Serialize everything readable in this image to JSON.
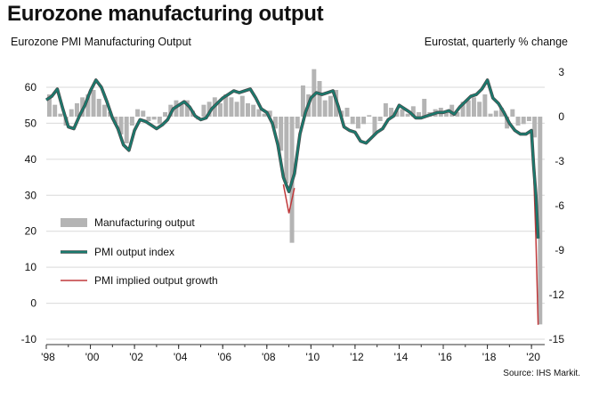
{
  "title": "Eurozone manufacturing output",
  "left_subtitle": "Eurozone PMI Manufacturing Output",
  "right_subtitle": "Eurostat, quarterly % change",
  "source": "Source: IHS Markit.",
  "chart_data": {
    "type": "line",
    "x_ticks": [
      "'98",
      "'00",
      "'02",
      "'04",
      "'06",
      "'08",
      "'10",
      "'12",
      "'14",
      "'16",
      "'18",
      "'20"
    ],
    "left_axis": {
      "ticks": [
        60,
        50,
        40,
        30,
        20,
        10,
        0,
        -10
      ],
      "range": [
        -10,
        65
      ]
    },
    "right_axis": {
      "ticks": [
        3,
        0,
        -3,
        -6,
        -9,
        -12,
        -15
      ],
      "range": [
        -15,
        3.5
      ]
    },
    "legend": {
      "placement": "lower-left"
    },
    "series_legend": [
      "Manufacturing output",
      "PMI output index",
      "PMI implied output growth"
    ],
    "colors": {
      "bars": "#b4b4b4",
      "pmi": "#1a7a6e",
      "implied": "#c0393b",
      "grid": "#d9d9d9"
    },
    "series": [
      {
        "name": "PMI output index",
        "x": [
          1998.0,
          1998.25,
          1998.5,
          1998.75,
          1999.0,
          1999.25,
          1999.5,
          1999.75,
          2000.0,
          2000.25,
          2000.5,
          2000.75,
          2001.0,
          2001.25,
          2001.5,
          2001.75,
          2002.0,
          2002.25,
          2002.5,
          2002.75,
          2003.0,
          2003.25,
          2003.5,
          2003.75,
          2004.0,
          2004.25,
          2004.5,
          2004.75,
          2005.0,
          2005.25,
          2005.5,
          2005.75,
          2006.0,
          2006.25,
          2006.5,
          2006.75,
          2007.0,
          2007.25,
          2007.5,
          2007.75,
          2008.0,
          2008.25,
          2008.5,
          2008.75,
          2009.0,
          2009.25,
          2009.5,
          2009.75,
          2010.0,
          2010.25,
          2010.5,
          2010.75,
          2011.0,
          2011.25,
          2011.5,
          2011.75,
          2012.0,
          2012.25,
          2012.5,
          2012.75,
          2013.0,
          2013.25,
          2013.5,
          2013.75,
          2014.0,
          2014.25,
          2014.5,
          2014.75,
          2015.0,
          2015.25,
          2015.5,
          2015.75,
          2016.0,
          2016.25,
          2016.5,
          2016.75,
          2017.0,
          2017.25,
          2017.5,
          2017.75,
          2018.0,
          2018.25,
          2018.5,
          2018.75,
          2019.0,
          2019.25,
          2019.5,
          2019.75,
          2020.0,
          2020.1,
          2020.2,
          2020.3
        ],
        "values": [
          56.5,
          57.5,
          59.5,
          54,
          49,
          48.5,
          52,
          55,
          59,
          62,
          60,
          56,
          51.5,
          48.5,
          44,
          42.5,
          48,
          51,
          50.5,
          49.5,
          48.5,
          49.5,
          51,
          54,
          55,
          56,
          54.5,
          52,
          51,
          51.5,
          54,
          55.5,
          57,
          58,
          59,
          58.5,
          59,
          59.5,
          57,
          54,
          53,
          50,
          44,
          35,
          31,
          36,
          47,
          53,
          57,
          58.5,
          58,
          58.5,
          59,
          54.5,
          49,
          48,
          47.5,
          45,
          44.5,
          46,
          47.5,
          48.5,
          51,
          52,
          55,
          54,
          53,
          51.5,
          51.5,
          52,
          52.5,
          53,
          53,
          53.5,
          52.5,
          54.5,
          56,
          57.5,
          58,
          59.5,
          62,
          57,
          55.5,
          53,
          50,
          48,
          47,
          47,
          48,
          38,
          30,
          18
        ]
      },
      {
        "name": "PMI implied output growth",
        "x": [
          2008.75,
          2009.0,
          2009.25,
          2020.0,
          2020.1,
          2020.2,
          2020.3
        ],
        "values": [
          33,
          25,
          32,
          47.5,
          36,
          18,
          -6
        ]
      }
    ],
    "bars": {
      "name": "Manufacturing output",
      "x": [
        1998.0,
        1998.25,
        1998.5,
        1998.75,
        1999.0,
        1999.25,
        1999.5,
        1999.75,
        2000.0,
        2000.25,
        2000.5,
        2000.75,
        2001.0,
        2001.25,
        2001.5,
        2001.75,
        2002.0,
        2002.25,
        2002.5,
        2002.75,
        2003.0,
        2003.25,
        2003.5,
        2003.75,
        2004.0,
        2004.25,
        2004.5,
        2004.75,
        2005.0,
        2005.25,
        2005.5,
        2005.75,
        2006.0,
        2006.25,
        2006.5,
        2006.75,
        2007.0,
        2007.25,
        2007.5,
        2007.75,
        2008.0,
        2008.25,
        2008.5,
        2008.75,
        2009.0,
        2009.25,
        2009.5,
        2009.75,
        2010.0,
        2010.25,
        2010.5,
        2010.75,
        2011.0,
        2011.25,
        2011.5,
        2011.75,
        2012.0,
        2012.25,
        2012.5,
        2012.75,
        2013.0,
        2013.25,
        2013.5,
        2013.75,
        2014.0,
        2014.25,
        2014.5,
        2014.75,
        2015.0,
        2015.25,
        2015.5,
        2015.75,
        2016.0,
        2016.25,
        2016.5,
        2016.75,
        2017.0,
        2017.25,
        2017.5,
        2017.75,
        2018.0,
        2018.25,
        2018.5,
        2018.75,
        2019.0,
        2019.25,
        2019.5,
        2019.75,
        2020.0,
        2020.25
      ],
      "values": [
        1.5,
        0.8,
        0.2,
        -0.6,
        0.5,
        0.9,
        1.3,
        1.5,
        1.8,
        1.2,
        0.8,
        0.3,
        -0.5,
        -1.2,
        -1.8,
        -0.6,
        0.5,
        0.4,
        -0.3,
        -0.2,
        -0.5,
        0.3,
        0.8,
        1.1,
        0.9,
        1.1,
        0.4,
        -0.2,
        0.8,
        1.0,
        1.3,
        0.9,
        1.5,
        1.3,
        1.0,
        1.4,
        0.9,
        0.8,
        0.5,
        0.2,
        0.4,
        -0.8,
        -2.3,
        -4.5,
        -8.5,
        -0.8,
        2.1,
        1.5,
        3.2,
        2.4,
        1.1,
        1.4,
        1.8,
        0.4,
        0.6,
        -0.5,
        -0.8,
        -0.5,
        0.1,
        -1.2,
        -0.3,
        0.9,
        0.6,
        0.4,
        0.5,
        0.2,
        0.7,
        0.3,
        1.2,
        0.3,
        0.5,
        0.6,
        0.4,
        0.8,
        0.3,
        1.0,
        1.1,
        1.3,
        1.0,
        1.5,
        0.2,
        0.4,
        0.6,
        -0.8,
        0.5,
        -0.6,
        -0.5,
        -0.3,
        -1.4,
        -14.0
      ]
    }
  }
}
